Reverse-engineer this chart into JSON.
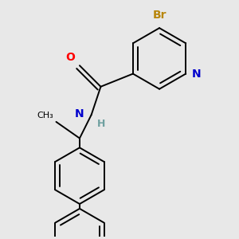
{
  "background_color": "#e8e8e8",
  "bond_color": "#000000",
  "N_color": "#0000cd",
  "O_color": "#ff0000",
  "Br_color": "#b8860b",
  "H_color": "#6fa0a0",
  "bond_width": 1.4,
  "font_size": 10,
  "fig_size": [
    3.0,
    3.0
  ],
  "dpi": 100,
  "xlim": [
    0.0,
    1.0
  ],
  "ylim": [
    0.0,
    1.0
  ]
}
